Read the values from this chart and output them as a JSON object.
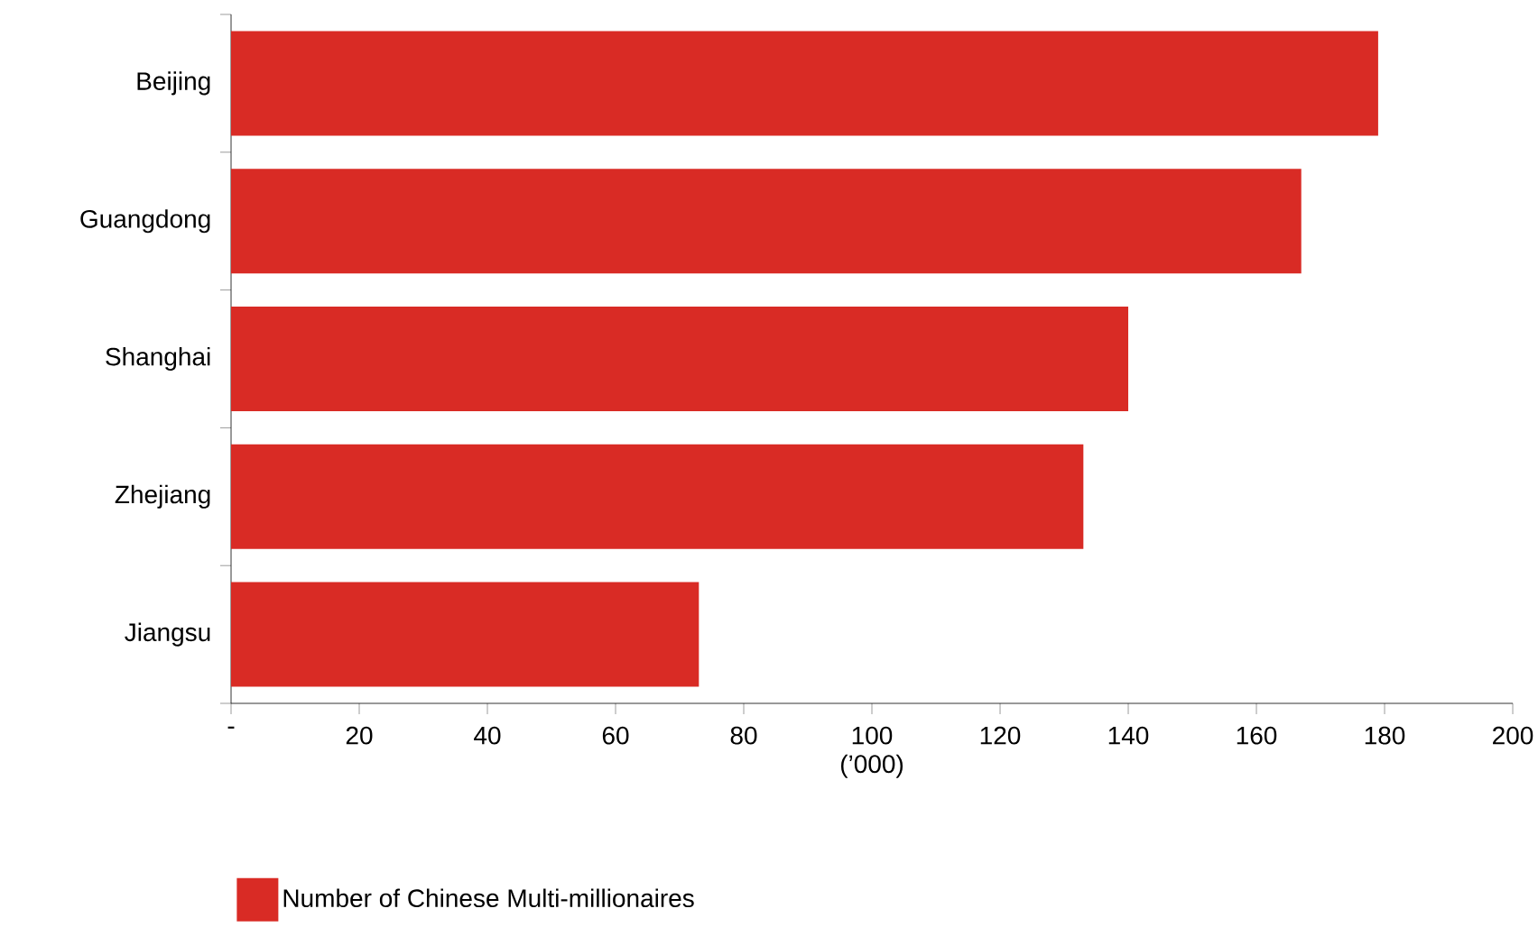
{
  "chart_data": {
    "type": "bar",
    "orientation": "horizontal",
    "categories": [
      "Beijing",
      "Guangdong",
      "Shanghai",
      "Zhejiang",
      "Jiangsu"
    ],
    "series": [
      {
        "name": "Number of Chinese Multi-millionaires",
        "color": "#d92b25",
        "values": [
          179,
          167,
          140,
          133,
          73
        ]
      }
    ],
    "xlabel": "(’000)",
    "xlim": [
      0,
      200
    ],
    "xticks": [
      {
        "value": 0,
        "label": "-"
      },
      20,
      40,
      60,
      80,
      100,
      120,
      140,
      160,
      180,
      200
    ],
    "legend": "bottom left"
  }
}
